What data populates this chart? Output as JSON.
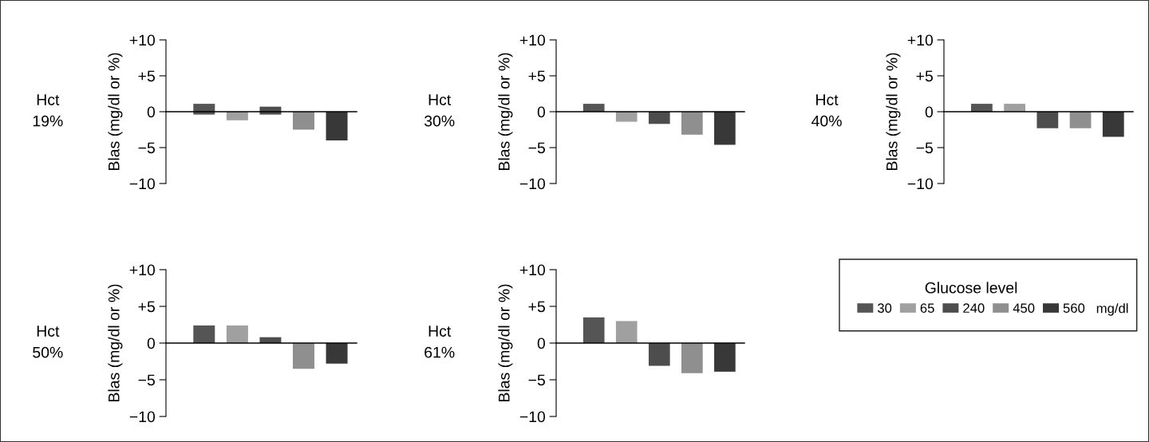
{
  "chart_data": [
    {
      "type": "bar",
      "title": "Hct\n19%",
      "ylabel": "Blas (mg/dl or %)",
      "categories": [
        null
      ],
      "legend": "right",
      "legend_title": "Glucose level",
      "annotations": [
        "mg/dl"
      ],
      "ylim": [
        -10,
        10
      ],
      "yticks": [
        {
          "value": 10,
          "label": "+10"
        },
        {
          "value": 5,
          "label": "+5"
        },
        0,
        {
          "value": -5,
          "label": "−5"
        },
        {
          "value": -10,
          "label": "−10"
        }
      ],
      "series": [
        {
          "name": "30",
          "color": "#555555",
          "values": [
            1.5
          ],
          "base": [
            -0.4
          ]
        },
        {
          "name": "65",
          "color": "#a0a0a0",
          "values": [
            -1.2
          ]
        },
        {
          "name": "240",
          "color": "#4d4d4d",
          "values": [
            1.1
          ],
          "base": [
            -0.4
          ]
        },
        {
          "name": "450",
          "color": "#8f8f8f",
          "values": [
            -2.5
          ]
        },
        {
          "name": "560",
          "color": "#383838",
          "values": [
            -4.0
          ]
        }
      ]
    },
    {
      "type": "bar",
      "title": "Hct\n30%",
      "ylabel": "Blas (mg/dl or %)",
      "categories": [
        null
      ],
      "ylim": [
        -10,
        10
      ],
      "yticks": [
        {
          "value": 10,
          "label": "+10"
        },
        {
          "value": 5,
          "label": "+5"
        },
        0,
        {
          "value": -5,
          "label": "−5"
        },
        {
          "value": -10,
          "label": "−10"
        }
      ],
      "series": [
        {
          "name": "30",
          "color": "#555555",
          "values": [
            1.1
          ]
        },
        {
          "name": "65",
          "color": "#a0a0a0",
          "values": [
            -1.4
          ]
        },
        {
          "name": "240",
          "color": "#4d4d4d",
          "values": [
            -1.7
          ]
        },
        {
          "name": "450",
          "color": "#8f8f8f",
          "values": [
            -3.2
          ]
        },
        {
          "name": "560",
          "color": "#383838",
          "values": [
            -4.6
          ]
        }
      ]
    },
    {
      "type": "bar",
      "title": "Hct\n40%",
      "ylabel": "Blas (mg/dl or %)",
      "categories": [
        null
      ],
      "ylim": [
        -10,
        10
      ],
      "yticks": [
        {
          "value": 10,
          "label": "+10"
        },
        {
          "value": 5,
          "label": "+5"
        },
        0,
        {
          "value": -5,
          "label": "−5"
        },
        {
          "value": -10,
          "label": "−10"
        }
      ],
      "series": [
        {
          "name": "30",
          "color": "#555555",
          "values": [
            1.1
          ]
        },
        {
          "name": "65",
          "color": "#a0a0a0",
          "values": [
            1.1
          ]
        },
        {
          "name": "240",
          "color": "#4d4d4d",
          "values": [
            -2.3
          ]
        },
        {
          "name": "450",
          "color": "#8f8f8f",
          "values": [
            -2.3
          ]
        },
        {
          "name": "560",
          "color": "#383838",
          "values": [
            -3.5
          ]
        }
      ]
    },
    {
      "type": "bar",
      "title": "Hct\n50%",
      "ylabel": "Blas (mg/dl or %)",
      "categories": [
        null
      ],
      "ylim": [
        -10,
        10
      ],
      "yticks": [
        {
          "value": 10,
          "label": "+10"
        },
        {
          "value": 5,
          "label": "+5"
        },
        0,
        {
          "value": -5,
          "label": "−5"
        },
        {
          "value": -10,
          "label": "−10"
        }
      ],
      "series": [
        {
          "name": "30",
          "color": "#555555",
          "values": [
            2.4
          ]
        },
        {
          "name": "65",
          "color": "#a0a0a0",
          "values": [
            2.4
          ]
        },
        {
          "name": "240",
          "color": "#4d4d4d",
          "values": [
            0.8
          ]
        },
        {
          "name": "450",
          "color": "#8f8f8f",
          "values": [
            -3.5
          ]
        },
        {
          "name": "560",
          "color": "#383838",
          "values": [
            -2.8
          ]
        }
      ]
    },
    {
      "type": "bar",
      "title": "Hct\n61%",
      "ylabel": "Blas (mg/dl or %)",
      "categories": [
        null
      ],
      "ylim": [
        -10,
        10
      ],
      "yticks": [
        {
          "value": 10,
          "label": "+10"
        },
        {
          "value": 5,
          "label": "+5"
        },
        0,
        {
          "value": -5,
          "label": "−5"
        },
        {
          "value": -10,
          "label": "−10"
        }
      ],
      "series": [
        {
          "name": "30",
          "color": "#555555",
          "values": [
            3.5
          ]
        },
        {
          "name": "65",
          "color": "#a0a0a0",
          "values": [
            3.0
          ]
        },
        {
          "name": "240",
          "color": "#4d4d4d",
          "values": [
            -3.1
          ]
        },
        {
          "name": "450",
          "color": "#8f8f8f",
          "values": [
            -4.1
          ]
        },
        {
          "name": "560",
          "color": "#383838",
          "values": [
            -3.9
          ]
        }
      ]
    }
  ]
}
